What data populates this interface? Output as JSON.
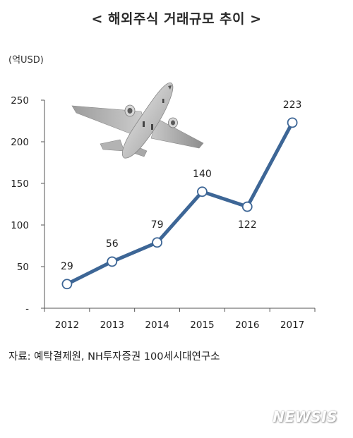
{
  "page_title": "< 해외주식 거래규모 추이 >",
  "unit_label": "(억USD)",
  "source_note": "자료: 예탁결제원, NH투자증권 100세시대연구소",
  "watermark": "NEWSIS",
  "chart_data": {
    "type": "line",
    "title": "",
    "xlabel": "",
    "ylabel": "(억USD)",
    "x": [
      "2012",
      "2013",
      "2014",
      "2015",
      "2016",
      "2017"
    ],
    "series": [
      {
        "values": [
          29,
          56,
          79,
          140,
          122,
          223
        ]
      }
    ],
    "data_labels": [
      "29",
      "56",
      "79",
      "140",
      "122",
      "223"
    ],
    "y_ticks": [
      "-",
      "50",
      "100",
      "150",
      "200",
      "250"
    ],
    "y_tick_values": [
      0,
      50,
      100,
      150,
      200,
      250
    ],
    "ylim": [
      0,
      250
    ],
    "grid": false,
    "line_color": "#3d6696",
    "marker_fill": "#ffffff",
    "marker_stroke": "#3d6696",
    "image_icon": "airplane-icon"
  }
}
